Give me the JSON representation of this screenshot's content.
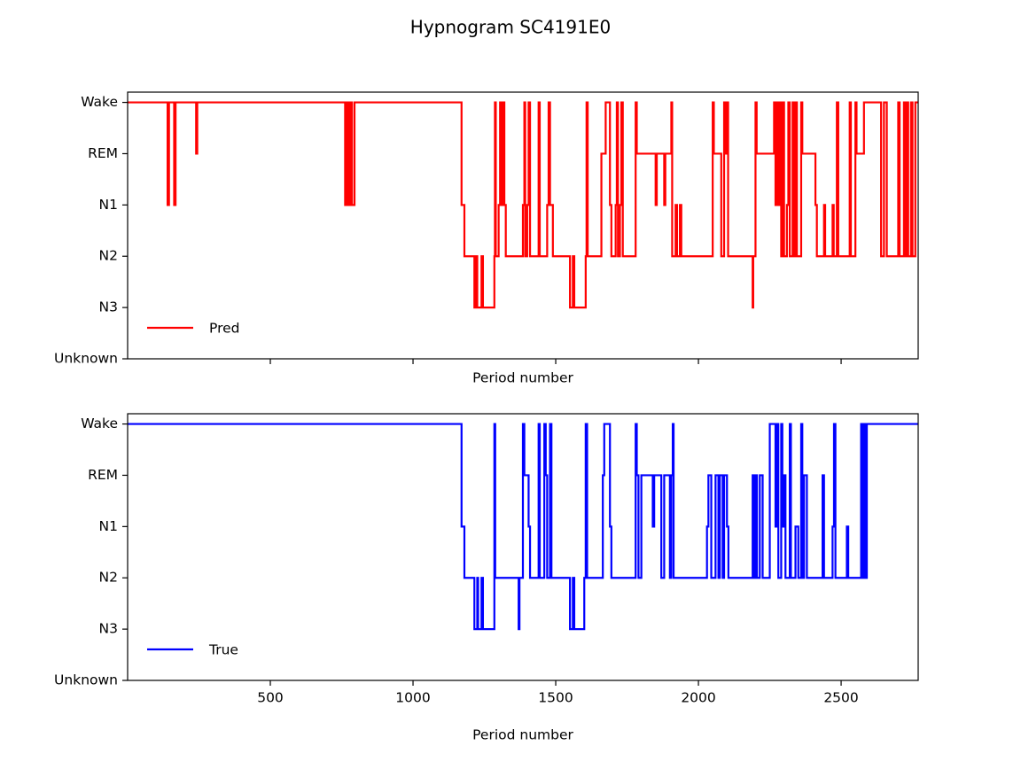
{
  "title": "Hypnogram SC4191E0",
  "chart_data": [
    {
      "type": "line",
      "drawstyle": "steps-post",
      "xlabel": "Period number",
      "show_xtick_labels": false,
      "legend": "lower left",
      "xlim": [
        0,
        2770
      ],
      "xticks": [
        500,
        1000,
        1500,
        2000,
        2500
      ],
      "ylim": [
        0,
        5.2
      ],
      "yticks": [
        {
          "value": 0,
          "label": "Unknown"
        },
        {
          "value": 1,
          "label": "N3"
        },
        {
          "value": 2,
          "label": "N2"
        },
        {
          "value": 3,
          "label": "N1"
        },
        {
          "value": 4,
          "label": "REM"
        },
        {
          "value": 5,
          "label": "Wake"
        }
      ],
      "series": [
        {
          "name": "Pred",
          "color": "#ff0000",
          "x": [
            0,
            140,
            145,
            163,
            168,
            240,
            244,
            762,
            766,
            770,
            774,
            778,
            782,
            786,
            795,
            1170,
            1180,
            1215,
            1220,
            1225,
            1240,
            1245,
            1285,
            1287,
            1290,
            1300,
            1305,
            1310,
            1315,
            1320,
            1325,
            1385,
            1390,
            1393,
            1400,
            1405,
            1410,
            1440,
            1444,
            1470,
            1475,
            1480,
            1490,
            1550,
            1560,
            1565,
            1605,
            1608,
            1612,
            1660,
            1675,
            1690,
            1695,
            1710,
            1714,
            1718,
            1725,
            1730,
            1735,
            1780,
            1784,
            1850,
            1854,
            1880,
            1884,
            1905,
            1908,
            1920,
            1925,
            1935,
            1940,
            2050,
            2054,
            2080,
            2090,
            2094,
            2100,
            2104,
            2190,
            2192,
            2200,
            2204,
            2265,
            2270,
            2274,
            2280,
            2286,
            2290,
            2295,
            2300,
            2310,
            2315,
            2320,
            2330,
            2334,
            2340,
            2345,
            2360,
            2364,
            2410,
            2415,
            2440,
            2444,
            2470,
            2474,
            2485,
            2490,
            2530,
            2534,
            2550,
            2554,
            2580,
            2640,
            2650,
            2660,
            2700,
            2705,
            2720,
            2725,
            2730,
            2735,
            2745,
            2750,
            2760,
            2770
          ],
          "values": [
            5,
            3,
            5,
            3,
            5,
            4,
            5,
            3,
            5,
            3,
            5,
            3,
            5,
            3,
            5,
            3,
            2,
            1,
            2,
            1,
            2,
            1,
            2,
            5,
            2,
            3,
            5,
            3,
            5,
            3,
            2,
            3,
            5,
            2,
            3,
            5,
            2,
            5,
            2,
            3,
            5,
            3,
            2,
            1,
            2,
            1,
            2,
            5,
            2,
            4,
            5,
            3,
            2,
            3,
            5,
            2,
            3,
            5,
            2,
            5,
            4,
            3,
            4,
            3,
            4,
            5,
            2,
            3,
            2,
            3,
            2,
            5,
            4,
            2,
            5,
            4,
            5,
            2,
            1,
            2,
            5,
            4,
            5,
            3,
            5,
            3,
            5,
            2,
            5,
            2,
            3,
            5,
            2,
            5,
            2,
            5,
            2,
            5,
            4,
            3,
            2,
            3,
            2,
            3,
            2,
            5,
            2,
            5,
            2,
            5,
            4,
            5,
            2,
            5,
            2,
            5,
            2,
            5,
            2,
            5,
            2,
            5,
            2,
            5,
            5
          ]
        }
      ]
    },
    {
      "type": "line",
      "drawstyle": "steps-post",
      "xlabel": "Period number",
      "show_xtick_labels": true,
      "legend": "lower left",
      "xlim": [
        0,
        2770
      ],
      "xticks": [
        500,
        1000,
        1500,
        2000,
        2500
      ],
      "ylim": [
        0,
        5.2
      ],
      "yticks": [
        {
          "value": 0,
          "label": "Unknown"
        },
        {
          "value": 1,
          "label": "N3"
        },
        {
          "value": 2,
          "label": "N2"
        },
        {
          "value": 3,
          "label": "N1"
        },
        {
          "value": 4,
          "label": "REM"
        },
        {
          "value": 5,
          "label": "Wake"
        }
      ],
      "series": [
        {
          "name": "True",
          "color": "#0000ff",
          "x": [
            0,
            1170,
            1180,
            1215,
            1225,
            1228,
            1240,
            1245,
            1285,
            1288,
            1370,
            1373,
            1385,
            1390,
            1405,
            1410,
            1440,
            1444,
            1460,
            1465,
            1470,
            1480,
            1485,
            1550,
            1560,
            1565,
            1600,
            1605,
            1610,
            1665,
            1670,
            1690,
            1695,
            1780,
            1784,
            1790,
            1800,
            1840,
            1845,
            1870,
            1880,
            1900,
            1905,
            1910,
            1913,
            2030,
            2035,
            2045,
            2060,
            2070,
            2075,
            2085,
            2090,
            2100,
            2105,
            2190,
            2195,
            2200,
            2205,
            2215,
            2225,
            2250,
            2270,
            2275,
            2280,
            2290,
            2294,
            2300,
            2305,
            2320,
            2324,
            2340,
            2350,
            2360,
            2364,
            2370,
            2380,
            2435,
            2440,
            2470,
            2475,
            2480,
            2520,
            2525,
            2570,
            2575,
            2580,
            2585,
            2590,
            2770
          ],
          "values": [
            5,
            3,
            2,
            1,
            2,
            1,
            2,
            1,
            5,
            2,
            1,
            2,
            5,
            4,
            3,
            2,
            5,
            2,
            5,
            4,
            2,
            5,
            2,
            1,
            2,
            1,
            2,
            5,
            2,
            4,
            5,
            3,
            2,
            5,
            4,
            2,
            4,
            3,
            4,
            2,
            4,
            2,
            4,
            5,
            2,
            3,
            4,
            2,
            4,
            2,
            4,
            2,
            4,
            3,
            2,
            4,
            2,
            4,
            2,
            4,
            2,
            5,
            3,
            5,
            2,
            5,
            3,
            4,
            2,
            5,
            2,
            3,
            2,
            5,
            2,
            4,
            2,
            4,
            2,
            3,
            5,
            2,
            3,
            2,
            5,
            2,
            5,
            2,
            5,
            5
          ]
        }
      ]
    }
  ]
}
